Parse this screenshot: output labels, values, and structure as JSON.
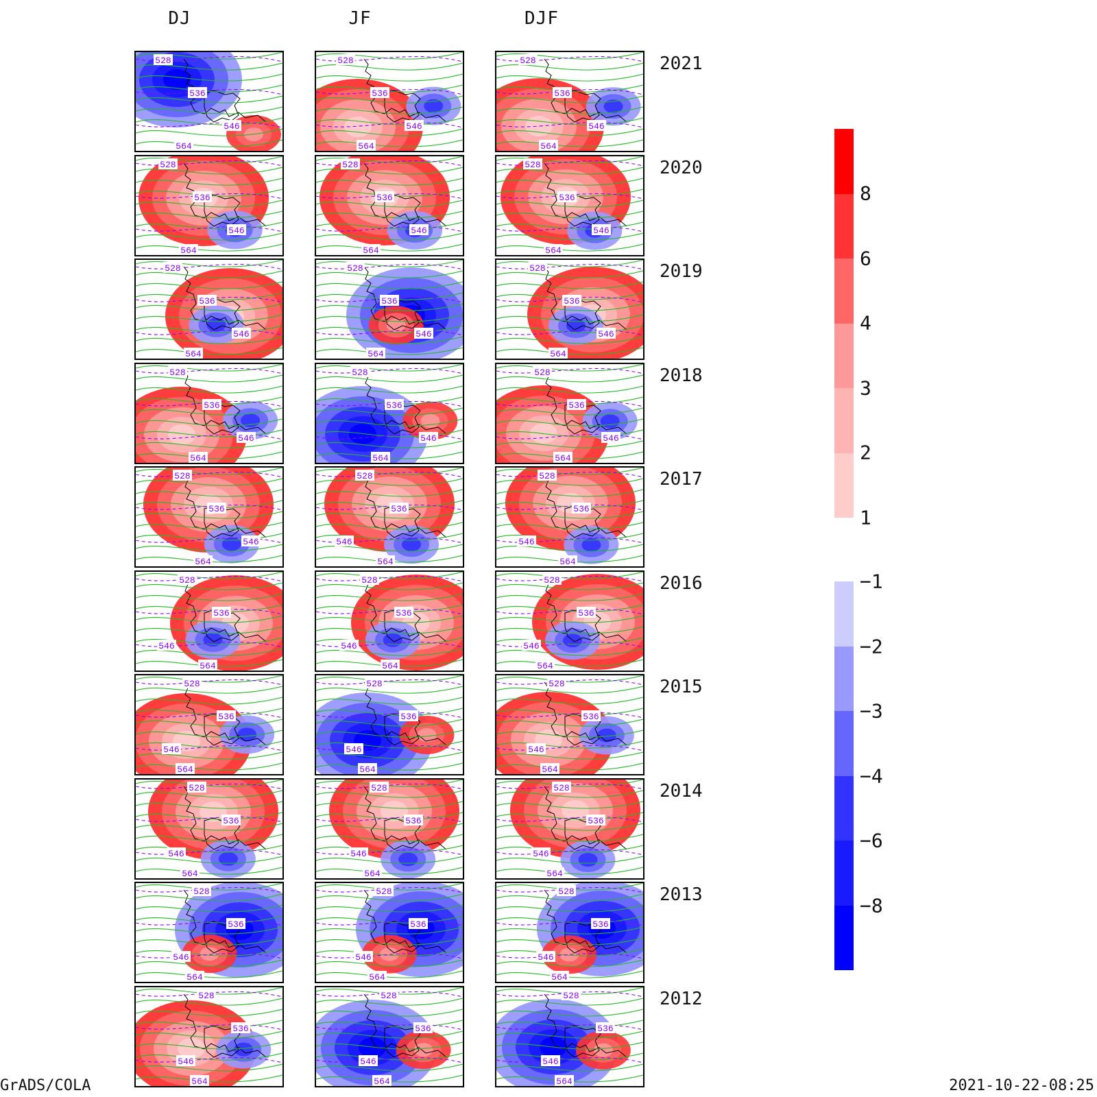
{
  "columns": [
    "DJ",
    "JF",
    "DJF"
  ],
  "years": [
    "2021",
    "2020",
    "2019",
    "2018",
    "2017",
    "2016",
    "2015",
    "2014",
    "2013",
    "2012"
  ],
  "contour_labels": [
    "528",
    "536",
    "546",
    "564"
  ],
  "colorbar_positive": {
    "labels": [
      "8",
      "6",
      "4",
      "3",
      "2",
      "1"
    ],
    "colors": [
      "#ff0000",
      "#ff3333",
      "#ff6666",
      "#ff9999",
      "#ffb3b3",
      "#ffcccc"
    ]
  },
  "colorbar_negative": {
    "labels": [
      "−1",
      "−2",
      "−3",
      "−4",
      "−6",
      "−8"
    ],
    "colors": [
      "#ccccff",
      "#9999ff",
      "#6666ff",
      "#3333ff",
      "#1a1aff",
      "#0000ff"
    ]
  },
  "footer_left": "GrADS/COLA",
  "footer_right": "2021-10-22-08:25",
  "colors": {
    "geopotential_line": "#22bb22",
    "thickness_line": "#8b00ff",
    "coastline": "#000000"
  },
  "panel_anomaly_sign": [
    [
      -1,
      1,
      1,
      1,
      1,
      1,
      1,
      1,
      -1,
      1
    ],
    [
      1,
      1,
      -1,
      -1,
      1,
      1,
      -1,
      1,
      -1,
      -1
    ],
    [
      1,
      1,
      1,
      1,
      1,
      1,
      1,
      1,
      -1,
      -1
    ]
  ]
}
